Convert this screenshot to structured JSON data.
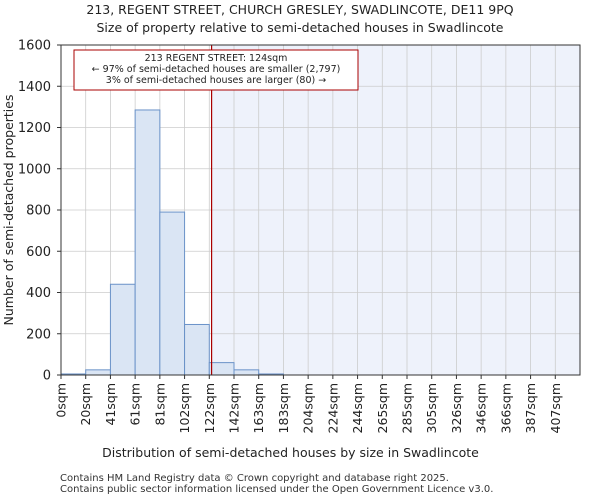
{
  "chart_data": {
    "type": "bar",
    "title": "213, REGENT STREET, CHURCH GRESLEY, SWADLINCOTE, DE11 9PQ",
    "subtitle": "Size of property relative to semi-detached houses in Swadlincote",
    "xlabel": "Distribution of semi-detached houses by size in Swadlincote",
    "ylabel": "Number of semi-detached properties",
    "ylim": [
      0,
      1600
    ],
    "yticks": [
      0,
      200,
      400,
      600,
      800,
      1000,
      1200,
      1400,
      1600
    ],
    "categories": [
      "0sqm",
      "20sqm",
      "41sqm",
      "61sqm",
      "81sqm",
      "102sqm",
      "122sqm",
      "142sqm",
      "163sqm",
      "183sqm",
      "204sqm",
      "224sqm",
      "244sqm",
      "265sqm",
      "285sqm",
      "305sqm",
      "326sqm",
      "346sqm",
      "366sqm",
      "387sqm",
      "407sqm"
    ],
    "values": [
      5,
      25,
      440,
      1285,
      790,
      245,
      60,
      25,
      5,
      0,
      0,
      0,
      0,
      0,
      0,
      0,
      0,
      0,
      0,
      0,
      0
    ],
    "marker": {
      "value_sqm": 124,
      "label_lines": [
        "213 REGENT STREET: 124sqm",
        "← 97% of semi-detached houses are smaller (2,797)",
        "3% of semi-detached houses are larger (80) →"
      ]
    },
    "colors": {
      "bar_fill": "#dae5f4",
      "bar_stroke": "#6a92c8",
      "marker": "#aa0000",
      "shade": "#eef2fb",
      "grid": "#cccccc"
    }
  },
  "footer": {
    "line1": "Contains HM Land Registry data © Crown copyright and database right 2025.",
    "line2": "Contains public sector information licensed under the Open Government Licence v3.0."
  }
}
